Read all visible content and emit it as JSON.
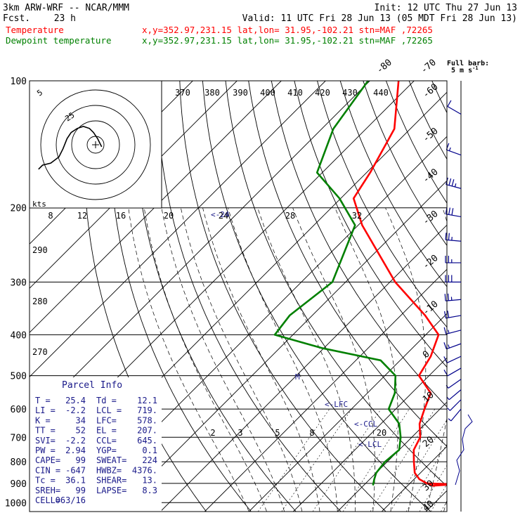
{
  "header": {
    "model": "3km ARW-WRF -- NCAR/MMM",
    "init": "Init: 12 UTC Thu 27 Jun 13",
    "fcst_label": "Fcst.",
    "fcst_value": "23 h",
    "valid": "Valid: 11 UTC Fri 28 Jun 13 (05 MDT Fri 28 Jun 13)"
  },
  "legend": [
    {
      "name": "Temperature",
      "color": "#ff0000",
      "info": "x,y=352.97,231.15    lat,lon= 31.95,-102.21   stn=MAF ,72265"
    },
    {
      "name": "Dewpoint temperature",
      "color": "#008000",
      "info": "x,y=352.97,231.15    lat,lon= 31.95,-102.21   stn=MAF ,72265"
    }
  ],
  "barb_legend": {
    "line1": "Full barb:",
    "line2": "5 m s",
    "sup": "-1"
  },
  "chart_data": {
    "type": "line",
    "pressure_levels": [
      "100",
      "200",
      "300",
      "400",
      "500",
      "600",
      "700",
      "800",
      "900",
      "1000"
    ],
    "isotherm_labels": [
      "-80",
      "-70",
      "-60",
      "-50",
      "-40",
      "-30",
      "-20",
      "-10",
      "0",
      "10",
      "20",
      "30",
      "40"
    ],
    "theta_labels": [
      "370",
      "380",
      "390",
      "400",
      "410",
      "420",
      "430",
      "440"
    ],
    "theta_side_labels": [
      "290",
      "280",
      "270"
    ],
    "mixing_ratio_labels": [
      "8",
      "12",
      "16",
      "20",
      "24",
      "28",
      "32"
    ],
    "mixing_ratio_low_labels": [
      "2",
      "3",
      "5",
      "8",
      "20"
    ],
    "hodograph": {
      "kts_label": "kts",
      "ring_labels": [
        "5",
        "25"
      ]
    },
    "level_markers": [
      "<-LFC",
      "<-CCL",
      "<-LCL",
      "M",
      "<-24"
    ],
    "series": [
      {
        "name": "Temperature",
        "color": "#ff0000",
        "p": [
          100,
          130,
          165,
          190,
          220,
          300,
          360,
          400,
          450,
          500,
          550,
          600,
          650,
          700,
          750,
          800,
          850,
          880,
          900,
          910
        ],
        "t": [
          -73.5,
          -63.6,
          -59.2,
          -57.1,
          -49.1,
          -28.8,
          -14.5,
          -7.1,
          -4.0,
          -2.3,
          4.3,
          6.5,
          8.7,
          11.9,
          13.3,
          16.0,
          18.7,
          21.2,
          23.8,
          25.4
        ]
      },
      {
        "name": "Dewpoint temperature",
        "color": "#008000",
        "p": [
          100,
          130,
          165,
          190,
          220,
          300,
          360,
          400,
          430,
          460,
          500,
          550,
          600,
          650,
          700,
          750,
          800,
          850,
          880,
          910
        ],
        "t": [
          -80.4,
          -77.4,
          -71.2,
          -60.3,
          -50.7,
          -43.0,
          -45.1,
          -44.1,
          -30.5,
          -14.4,
          -7.6,
          -3.8,
          -1.6,
          4.1,
          7.5,
          10.0,
          9.5,
          10.0,
          11.0,
          12.1
        ]
      }
    ],
    "wind_barbs": [
      {
        "p": 120,
        "spd": 10,
        "dir": 300
      },
      {
        "p": 150,
        "spd": 15,
        "dir": 290
      },
      {
        "p": 180,
        "spd": 35,
        "dir": 285
      },
      {
        "p": 210,
        "spd": 30,
        "dir": 280
      },
      {
        "p": 240,
        "spd": 25,
        "dir": 275
      },
      {
        "p": 270,
        "spd": 25,
        "dir": 270
      },
      {
        "p": 300,
        "spd": 30,
        "dir": 270
      },
      {
        "p": 330,
        "spd": 25,
        "dir": 265
      },
      {
        "p": 360,
        "spd": 20,
        "dir": 260
      },
      {
        "p": 390,
        "spd": 15,
        "dir": 255
      },
      {
        "p": 420,
        "spd": 15,
        "dir": 250
      },
      {
        "p": 450,
        "spd": 10,
        "dir": 245
      },
      {
        "p": 480,
        "spd": 10,
        "dir": 240
      },
      {
        "p": 510,
        "spd": 5,
        "dir": 235
      },
      {
        "p": 540,
        "spd": 5,
        "dir": 230
      },
      {
        "p": 570,
        "spd": 5,
        "dir": 225
      },
      {
        "p": 600,
        "spd": 5,
        "dir": 220
      }
    ],
    "wind_profile_px": {
      "note": "hodograph trace in plot units (kts components)",
      "u": [
        -28,
        -26,
        -22,
        -18,
        -16,
        -14,
        -12,
        -9,
        -6,
        -3,
        -1,
        1,
        2,
        3
      ],
      "v": [
        -12,
        -10,
        -9,
        -6,
        -2,
        3,
        6,
        8,
        9,
        8,
        6,
        3,
        1,
        -1
      ]
    }
  },
  "parcel_info": {
    "title": "Parcel Info",
    "rows": [
      [
        "T  =",
        "25.4",
        "Td =",
        "12.1"
      ],
      [
        "LI =",
        "-2.2",
        "LCL =",
        "719."
      ],
      [
        "K  =",
        "34",
        "LFC=",
        "578."
      ],
      [
        "TT =",
        "52",
        "EL =",
        "207."
      ],
      [
        "SVI=",
        "-2.2",
        "CCL=",
        "645."
      ],
      [
        "PW =",
        "2.94",
        "YGP=",
        "0.1"
      ],
      [
        "CAPE=",
        "99",
        "SWEAT=",
        "224"
      ],
      [
        "CIN =",
        "-647",
        "HWBZ=",
        "4376."
      ],
      [
        "Tc =",
        "36.1",
        "SHEAR=",
        "13."
      ],
      [
        "SREH=",
        "99",
        "LAPSE=",
        "8.3"
      ],
      [
        "CELL=",
        "063/16",
        "",
        ""
      ]
    ]
  }
}
